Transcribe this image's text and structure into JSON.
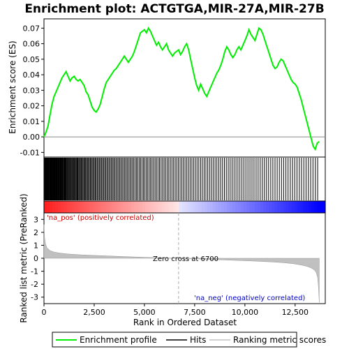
{
  "chart_data": {
    "type": "line",
    "title": "Enrichment plot: ACTGTGA,MIR-27A,MIR-27B",
    "xlabel": "Rank in Ordered Dataset",
    "ylabel_top": "Enrichment score (ES)",
    "ylabel_bottom": "Ranked list metric (PreRanked)",
    "x_range": [
      0,
      14000
    ],
    "x_ticks": [
      0,
      2500,
      5000,
      7500,
      10000,
      12500
    ],
    "x_tick_labels": [
      "0",
      "2,500",
      "5,000",
      "7,500",
      "10,000",
      "12,500"
    ],
    "es_ylim": [
      -0.013,
      0.076
    ],
    "es_ticks": [
      -0.01,
      0.0,
      0.01,
      0.02,
      0.03,
      0.04,
      0.05,
      0.06,
      0.07
    ],
    "es_tick_labels": [
      "-0.01",
      "0.00",
      "0.01",
      "0.02",
      "0.03",
      "0.04",
      "0.05",
      "0.06",
      "0.07"
    ],
    "metric_ylim": [
      -3.5,
      3.5
    ],
    "metric_ticks": [
      -3,
      -2,
      -1,
      0,
      1,
      2,
      3
    ],
    "metric_tick_labels": [
      "-3",
      "-2",
      "-1",
      "0",
      "1",
      "2",
      "3"
    ],
    "zero_cross": 6700,
    "annotations": {
      "pos": "'na_pos' (positively correlated)",
      "neg": "'na_neg' (negatively correlated)",
      "zero": "Zero cross at 6700"
    },
    "legend": {
      "placement": "bottom",
      "items": [
        "Enrichment profile",
        "Hits",
        "Ranking metric scores"
      ]
    },
    "colors": {
      "es_line": "#00ee00",
      "hits": "#000000",
      "metric_fill": "#c0c0c0",
      "zero_line": "#aaaaaa",
      "heat_pos": "#ff0000",
      "heat_neg": "#0000ff"
    },
    "series": [
      {
        "name": "Enrichment profile",
        "x": [
          0,
          100,
          200,
          300,
          400,
          500,
          600,
          700,
          800,
          900,
          1000,
          1100,
          1200,
          1300,
          1400,
          1500,
          1600,
          1700,
          1800,
          1900,
          2000,
          2100,
          2200,
          2300,
          2400,
          2500,
          2600,
          2700,
          2800,
          2900,
          3000,
          3100,
          3200,
          3300,
          3400,
          3500,
          3600,
          3700,
          3800,
          3900,
          4000,
          4100,
          4200,
          4300,
          4400,
          4500,
          4600,
          4700,
          4800,
          4900,
          5000,
          5100,
          5200,
          5300,
          5400,
          5500,
          5600,
          5700,
          5800,
          5900,
          6000,
          6100,
          6200,
          6300,
          6400,
          6500,
          6600,
          6700,
          6800,
          6900,
          7000,
          7100,
          7200,
          7300,
          7400,
          7500,
          7600,
          7700,
          7800,
          7900,
          8000,
          8100,
          8200,
          8300,
          8400,
          8500,
          8600,
          8700,
          8800,
          8900,
          9000,
          9100,
          9200,
          9300,
          9400,
          9500,
          9600,
          9700,
          9800,
          9900,
          10000,
          10100,
          10200,
          10300,
          10400,
          10500,
          10600,
          10700,
          10800,
          10900,
          11000,
          11100,
          11200,
          11300,
          11400,
          11500,
          11600,
          11700,
          11800,
          11900,
          12000,
          12100,
          12200,
          12300,
          12400,
          12500,
          12600,
          12700,
          12800,
          12900,
          13000,
          13100,
          13200,
          13300,
          13400,
          13500,
          13600,
          13700
        ],
        "values": [
          0.0,
          0.003,
          0.007,
          0.014,
          0.021,
          0.026,
          0.029,
          0.032,
          0.035,
          0.038,
          0.04,
          0.042,
          0.039,
          0.036,
          0.038,
          0.039,
          0.037,
          0.036,
          0.037,
          0.035,
          0.033,
          0.029,
          0.027,
          0.023,
          0.019,
          0.017,
          0.016,
          0.018,
          0.021,
          0.026,
          0.031,
          0.035,
          0.037,
          0.039,
          0.041,
          0.043,
          0.044,
          0.046,
          0.048,
          0.05,
          0.052,
          0.05,
          0.048,
          0.05,
          0.052,
          0.055,
          0.059,
          0.063,
          0.067,
          0.068,
          0.069,
          0.067,
          0.07,
          0.068,
          0.065,
          0.062,
          0.059,
          0.061,
          0.058,
          0.056,
          0.058,
          0.06,
          0.056,
          0.054,
          0.052,
          0.054,
          0.055,
          0.056,
          0.053,
          0.055,
          0.058,
          0.06,
          0.056,
          0.05,
          0.044,
          0.038,
          0.033,
          0.03,
          0.034,
          0.031,
          0.028,
          0.026,
          0.029,
          0.032,
          0.035,
          0.038,
          0.041,
          0.043,
          0.046,
          0.05,
          0.055,
          0.058,
          0.056,
          0.053,
          0.051,
          0.053,
          0.056,
          0.058,
          0.056,
          0.059,
          0.062,
          0.065,
          0.069,
          0.066,
          0.064,
          0.062,
          0.066,
          0.07,
          0.069,
          0.066,
          0.062,
          0.058,
          0.054,
          0.05,
          0.046,
          0.044,
          0.045,
          0.048,
          0.05,
          0.049,
          0.046,
          0.043,
          0.04,
          0.037,
          0.035,
          0.034,
          0.032,
          0.028,
          0.024,
          0.019,
          0.014,
          0.009,
          0.004,
          -0.001,
          -0.006,
          -0.008,
          -0.004,
          -0.003
        ]
      },
      {
        "name": "Ranking metric scores",
        "x": [
          0,
          30,
          80,
          150,
          300,
          500,
          800,
          1200,
          1800,
          2500,
          3500,
          4500,
          5500,
          6700,
          7500,
          8500,
          9500,
          10500,
          11300,
          11900,
          12400,
          12800,
          13100,
          13300,
          13450,
          13550,
          13620,
          13660,
          13700
        ],
        "values": [
          2.6,
          1.6,
          1.1,
          0.8,
          0.6,
          0.48,
          0.4,
          0.33,
          0.27,
          0.22,
          0.16,
          0.1,
          0.05,
          0.0,
          -0.04,
          -0.1,
          -0.16,
          -0.22,
          -0.28,
          -0.34,
          -0.42,
          -0.52,
          -0.63,
          -0.75,
          -0.9,
          -1.1,
          -1.5,
          -2.2,
          -3.4
        ]
      }
    ],
    "hit_ranks": [
      8,
      21,
      37,
      55,
      70,
      92,
      110,
      133,
      150,
      171,
      190,
      215,
      236,
      255,
      280,
      301,
      324,
      348,
      369,
      393,
      414,
      437,
      459,
      482,
      505,
      530,
      553,
      577,
      600,
      626,
      650,
      675,
      700,
      726,
      752,
      779,
      806,
      834,
      862,
      891,
      920,
      950,
      980,
      1011,
      1042,
      1074,
      1106,
      1139,
      1172,
      1206,
      1240,
      1275,
      1310,
      1346,
      1382,
      1419,
      1456,
      1494,
      1532,
      1571,
      1610,
      1650,
      1690,
      1731,
      1772,
      1814,
      1856,
      1899,
      1942,
      1986,
      2030,
      2075,
      2120,
      2166,
      2212,
      2259,
      2306,
      2354,
      2402,
      2451,
      2500,
      2550,
      2600,
      2651,
      2702,
      2754,
      2806,
      2859,
      2912,
      2966,
      3020,
      3075,
      3130,
      3186,
      3242,
      3299,
      3356,
      3414,
      3472,
      3531,
      3590,
      3650,
      3710,
      3771,
      3832,
      3894,
      3956,
      4019,
      4082,
      4146,
      4210,
      4275,
      4340,
      4406,
      4472,
      4539,
      4606,
      4674,
      4742,
      4811,
      4880,
      4950,
      5020,
      5091,
      5162,
      5234,
      5306,
      5379,
      5452,
      5526,
      5600,
      5675,
      5750,
      5826,
      5902,
      5979,
      6056,
      6134,
      6212,
      6291,
      6370,
      6450,
      6530,
      6611,
      6692,
      6774,
      6856,
      6939,
      7022,
      7106,
      7190,
      7275,
      7360,
      7446,
      7532,
      7619,
      7706,
      7794,
      7882,
      7971,
      8060,
      8150,
      8240,
      8331,
      8422,
      8514,
      8606,
      8699,
      8792,
      8886,
      8980,
      9075,
      9170,
      9266,
      9362,
      9459,
      9556,
      9654,
      9752,
      9851,
      9950,
      10050,
      10150,
      10251,
      10352,
      10454,
      10556,
      10659,
      10762,
      10866,
      10970,
      11075,
      11180,
      11286,
      11392,
      11499,
      11606,
      11714,
      11822,
      11931,
      12040,
      12150,
      12260,
      12371,
      12482,
      12594,
      12706,
      12819,
      12932,
      13046,
      13160,
      13275,
      13390,
      13506,
      13622
    ]
  }
}
